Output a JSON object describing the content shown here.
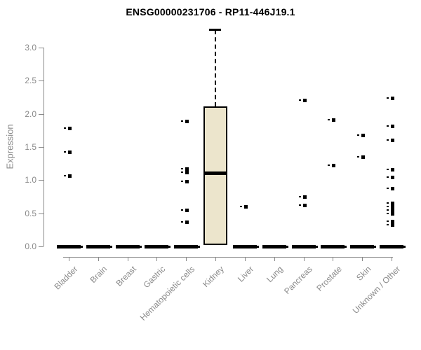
{
  "chart_data": {
    "type": "boxplot",
    "title": "ENSG00000231706 - RP11-446J19.1",
    "ylabel": "Expression",
    "xlabel": "",
    "yticks": [
      "0.0",
      "0.5",
      "1.0",
      "1.5",
      "2.0",
      "2.5",
      "3.0"
    ],
    "ytick_values": [
      0.0,
      0.5,
      1.0,
      1.5,
      2.0,
      2.5,
      3.0
    ],
    "ylim": [
      0,
      3.3
    ],
    "grid": false,
    "legend": "none",
    "colors": {
      "box_fill": "#ece5cc",
      "box_border": "#000000",
      "point": "#000000",
      "axis": "#8a8a8a",
      "tick_text": "#8a8a8a",
      "title_text": "#000000",
      "background": "#ffffff"
    },
    "categories": [
      "Bladder",
      "Brain",
      "Breast",
      "Gastric",
      "Hematopoietic cells",
      "Kidney",
      "Liver",
      "Lung",
      "Pancreas",
      "Prostate",
      "Skin",
      "Unknown / Other"
    ],
    "series": [
      {
        "category": "Bladder",
        "zero_bar": true,
        "outliers": [
          1.78,
          1.43,
          1.07
        ]
      },
      {
        "category": "Brain",
        "zero_bar": true,
        "outliers": []
      },
      {
        "category": "Breast",
        "zero_bar": true,
        "outliers": []
      },
      {
        "category": "Gastric",
        "zero_bar": true,
        "outliers": []
      },
      {
        "category": "Hematopoietic cells",
        "zero_bar": true,
        "outliers": [
          1.89,
          1.17,
          1.12,
          0.98,
          0.55,
          0.37
        ]
      },
      {
        "category": "Kidney",
        "zero_bar": false,
        "outliers": [],
        "box": {
          "whisker_high": 3.26,
          "q3": 2.11,
          "median": 1.11,
          "q1": 0.02
        }
      },
      {
        "category": "Liver",
        "zero_bar": true,
        "outliers": [
          0.6
        ]
      },
      {
        "category": "Lung",
        "zero_bar": true,
        "outliers": []
      },
      {
        "category": "Pancreas",
        "zero_bar": true,
        "outliers": [
          2.21,
          0.75,
          0.62
        ]
      },
      {
        "category": "Prostate",
        "zero_bar": true,
        "outliers": [
          1.91,
          1.23
        ]
      },
      {
        "category": "Skin",
        "zero_bar": true,
        "outliers": [
          1.68,
          1.35
        ]
      },
      {
        "category": "Unknown / Other",
        "zero_bar": true,
        "outliers": [
          2.24,
          1.82,
          1.61,
          1.16,
          1.05,
          0.88,
          0.66,
          0.6,
          0.55,
          0.5,
          0.38,
          0.33
        ]
      }
    ]
  }
}
